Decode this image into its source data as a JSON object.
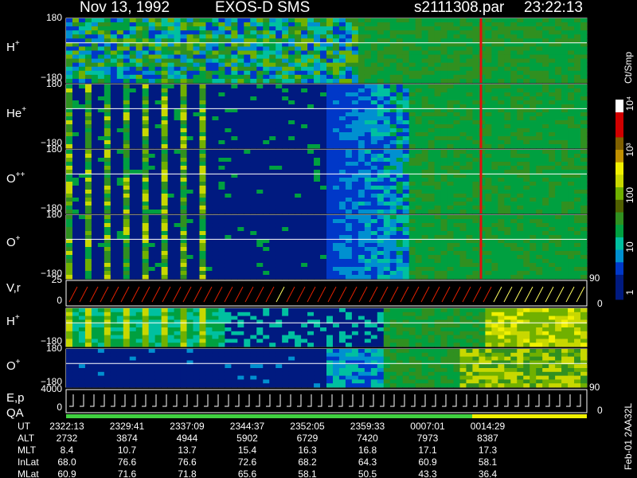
{
  "header": {
    "date": "Nov 13, 1992",
    "instrument": "EXOS-D SMS",
    "file": "s2111308.par",
    "time": "23:22:13"
  },
  "panels": [
    {
      "label": "H",
      "sup": "+",
      "tick_top": "180",
      "tick_bottom": "−180"
    },
    {
      "label": "He",
      "sup": "+",
      "tick_top": "180",
      "tick_bottom": "−180"
    },
    {
      "label": "O",
      "sup": "++",
      "tick_top": "180",
      "tick_bottom": "−180"
    },
    {
      "label": "O",
      "sup": "+",
      "tick_top": "180",
      "tick_bottom": "−180"
    },
    {
      "label": "V,r",
      "tick_top": "25",
      "tick_bottom": "0",
      "right_top": "90",
      "right_bottom": "0"
    },
    {
      "label": "H",
      "sup": "+",
      "tick_bottom": "−180"
    },
    {
      "label": "O",
      "sup": "+",
      "tick_top": "180",
      "tick_bottom": "−180"
    },
    {
      "label": "E,p",
      "label2": "QA",
      "tick_top": "4000",
      "tick_bottom": "0",
      "right_top": "90",
      "right_bottom": "0"
    }
  ],
  "colorbar": {
    "unit": "Ct/Smp",
    "ticks": [
      "1",
      "10",
      "100",
      "10³",
      "10⁴"
    ]
  },
  "orbit_table": {
    "rows": [
      {
        "name": "UT",
        "values": [
          "2322:13",
          "2329:41",
          "2337:09",
          "2344:37",
          "2352:05",
          "2359:33",
          "0007:01",
          "0014:29"
        ]
      },
      {
        "name": "ALT",
        "values": [
          "2732",
          "3874",
          "4944",
          "5902",
          "6729",
          "7420",
          "7973",
          "8387"
        ]
      },
      {
        "name": "MLT",
        "values": [
          "8.4",
          "10.7",
          "13.7",
          "15.4",
          "16.3",
          "16.8",
          "17.1",
          "17.3"
        ]
      },
      {
        "name": "InLat",
        "values": [
          "68.0",
          "76.6",
          "76.6",
          "72.6",
          "68.2",
          "64.3",
          "60.9",
          "58.1"
        ]
      },
      {
        "name": "MLat",
        "values": [
          "60.9",
          "71.6",
          "71.8",
          "65.6",
          "58.1",
          "50.5",
          "43.3",
          "36.4"
        ]
      }
    ]
  },
  "side_note": "Feb-01 2AA32L"
}
